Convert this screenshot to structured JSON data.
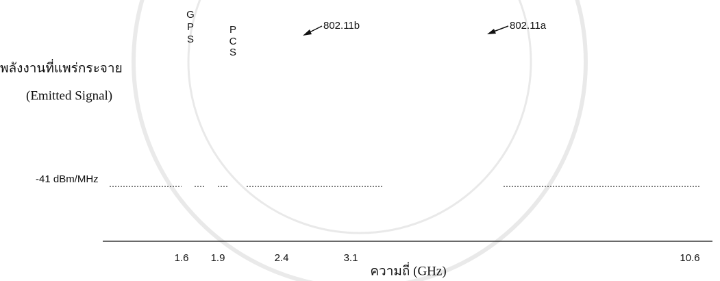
{
  "labels": {
    "power": "พลังงานที่แพร่กระจาย",
    "emitted": "(Emitted Signal)",
    "gps": [
      "G",
      "P",
      "S"
    ],
    "pcs": [
      "P",
      "C",
      "S"
    ],
    "wifi_b": "802.11b",
    "wifi_a": "802.11a",
    "limit": "-41 dBm/MHz",
    "x_axis": "ความถี่ (GHz)"
  },
  "ticks": [
    "1.6",
    "1.9",
    "2.4",
    "3.1",
    "10.6"
  ]
}
